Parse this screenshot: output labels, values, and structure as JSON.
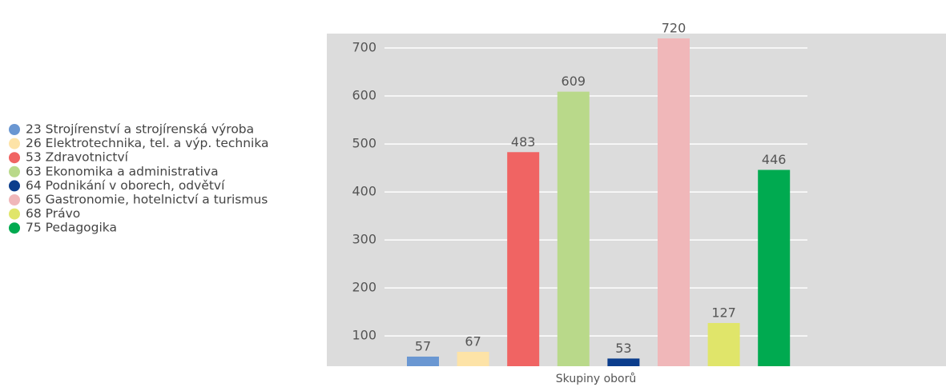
{
  "chart_data": {
    "type": "bar",
    "x_label": "Skupiny oborů",
    "categories": [
      "23 Strojírenství a strojírenská výroba",
      "26 Elektrotechnika, tel. a výp. technika",
      "53 Zdravotnictví",
      "63 Ekonomika a administrativa",
      "64 Podnikání v oborech, odvětví",
      "65 Gastronomie, hotelnictví a turismus",
      "68 Právo",
      "75 Pedagogika"
    ],
    "values": [
      57,
      67,
      483,
      609,
      53,
      720,
      127,
      446
    ],
    "colors": [
      "#6a97d2",
      "#fde3a7",
      "#f06463",
      "#b9d98a",
      "#0b3d8c",
      "#f0b7b9",
      "#e0e56a",
      "#00aa50"
    ],
    "ylim": [
      37,
      730
    ],
    "yticks": [
      100,
      200,
      300,
      400,
      500,
      600,
      700
    ],
    "grid": true,
    "legend": "left"
  }
}
